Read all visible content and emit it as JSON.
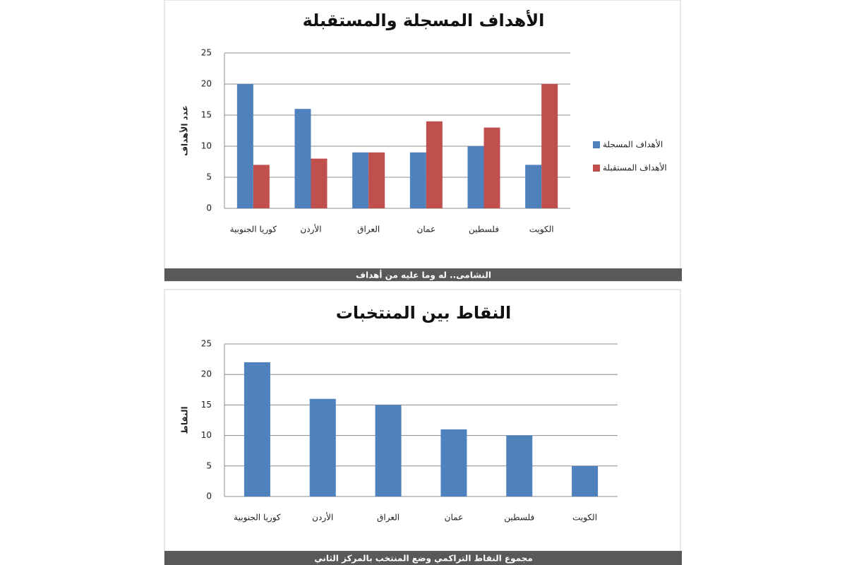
{
  "chart_data": [
    {
      "type": "bar",
      "title": "الأهداف المسجلة والمستقبلة",
      "y_label": "عدد الأهداف",
      "categories": [
        "كوريا الجنوبية",
        "الأردن",
        "العراق",
        "عمان",
        "فلسطين",
        "الكويت"
      ],
      "series": [
        {
          "name": "الأهداف المسجلة",
          "color": "#4f81bd",
          "values": [
            20,
            16,
            9,
            9,
            10,
            7
          ]
        },
        {
          "name": "الأهداف المستقبلة",
          "color": "#c0504d",
          "values": [
            7,
            8,
            9,
            14,
            13,
            20
          ]
        }
      ],
      "ylim": [
        0,
        25
      ],
      "yticks": [
        0,
        5,
        10,
        15,
        20,
        25
      ],
      "grid": true,
      "legend": "right",
      "caption": "النشامى.. له وما عليه من أهداف"
    },
    {
      "type": "bar",
      "title": "النقاط بين المنتخبات",
      "y_label": "النقاط",
      "categories": [
        "كوريا الجنوبية",
        "الأردن",
        "العراق",
        "عمان",
        "فلسطين",
        "الكويت"
      ],
      "series": [
        {
          "name": "النقاط",
          "color": "#4f81bd",
          "values": [
            22,
            16,
            15,
            11,
            10,
            5
          ]
        }
      ],
      "ylim": [
        0,
        25
      ],
      "yticks": [
        0,
        5,
        10,
        15,
        20,
        25
      ],
      "grid": true,
      "legend": "none",
      "caption": "مجموع النقاط التراكمي وضع المنتخب بالمركز الثاني"
    }
  ]
}
